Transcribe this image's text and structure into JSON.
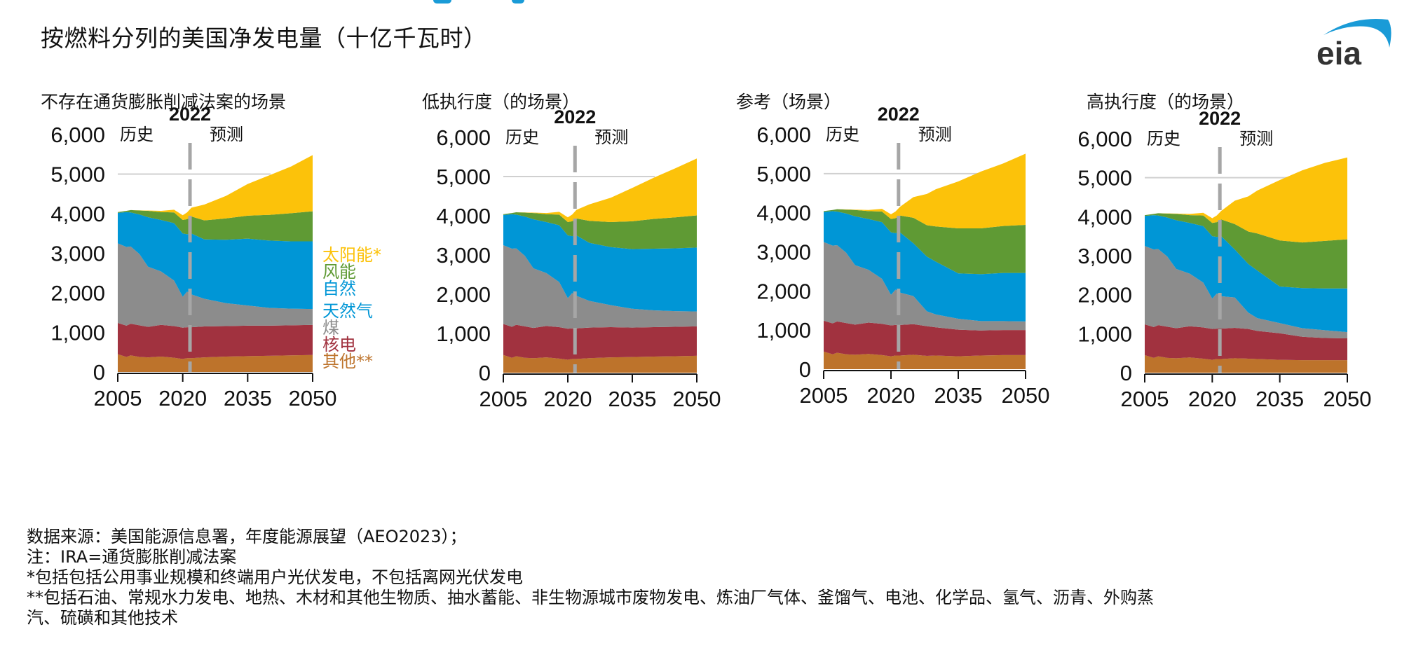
{
  "header": {
    "title": "按燃料分列的美国净发电量（十亿千瓦时）",
    "logo_text": "eia"
  },
  "colors": {
    "solar": "#fcc20a",
    "wind": "#5f9a34",
    "natural_gas": "#0096d6",
    "coal": "#8c8c8c",
    "nuclear": "#a1323f",
    "other": "#bd732b",
    "divider": "#a6a6a6",
    "gridline": "#d0d0d0",
    "logo_arc": "#1a9bd7",
    "logo_text": "#333333"
  },
  "legend": {
    "items": [
      {
        "key": "solar",
        "label": "太阳能*"
      },
      {
        "key": "wind",
        "label": "风能"
      },
      {
        "key": "natural_gas_1",
        "label": "自然",
        "color_key": "natural_gas"
      },
      {
        "key": "natural_gas_2",
        "label": "天然气",
        "color_key": "natural_gas"
      },
      {
        "key": "coal",
        "label": "煤"
      },
      {
        "key": "nuclear",
        "label": "核电"
      },
      {
        "key": "other",
        "label": "其他**"
      }
    ]
  },
  "footnotes": [
    "数据来源：美国能源信息署，年度能源展望（AEO2023）；",
    "注：IRA=通货膨胀削减法案",
    "*包括包括公用事业规模和终端用户光伏发电，不包括离网光伏发电",
    "**包括石油、常规水力发电、地热、木材和其他生物质、抽水蓄能、非生物源城市废物发电、炼油厂气体、釜馏气、电池、化学品、氢气、沥青、外购蒸",
    "汽、硫磺和其他技术"
  ],
  "chart_data": [
    {
      "type": "area",
      "stacked": true,
      "title": "不存在通货膨胀削减法案的场景",
      "divider_label": "2022",
      "divider_year": 2022,
      "history_label": "历史",
      "projection_label": "预测",
      "xlabel": "",
      "ylabel": "",
      "ylim": [
        0,
        6000
      ],
      "xlim": [
        2005,
        2050
      ],
      "yticks": [
        "0",
        "1,000",
        "2,000",
        "3,000",
        "4,000",
        "5,000",
        "6,000"
      ],
      "xticks": [
        "2005",
        "2020",
        "2035",
        "2050"
      ],
      "grid": "y=5000 only",
      "x": [
        2005,
        2007,
        2008,
        2010,
        2012,
        2015,
        2018,
        2020,
        2021,
        2022,
        2025,
        2030,
        2035,
        2040,
        2045,
        2050
      ],
      "series": [
        {
          "name": "其他",
          "key": "other",
          "values": [
            450,
            380,
            420,
            380,
            370,
            390,
            360,
            330,
            350,
            350,
            370,
            390,
            400,
            410,
            420,
            430
          ]
        },
        {
          "name": "核电",
          "key": "nuclear",
          "values": [
            790,
            790,
            800,
            800,
            770,
            800,
            800,
            790,
            780,
            780,
            780,
            770,
            770,
            760,
            760,
            760
          ]
        },
        {
          "name": "煤",
          "key": "coal",
          "values": [
            2010,
            1990,
            1950,
            1800,
            1520,
            1350,
            1150,
            780,
            900,
            830,
            700,
            580,
            510,
            450,
            420,
            400
          ]
        },
        {
          "name": "天然气",
          "key": "natural_gas",
          "values": [
            770,
            880,
            860,
            1000,
            1250,
            1300,
            1450,
            1600,
            1450,
            1540,
            1500,
            1600,
            1690,
            1700,
            1700,
            1710
          ]
        },
        {
          "name": "风能",
          "key": "wind",
          "values": [
            20,
            30,
            60,
            100,
            160,
            200,
            270,
            340,
            380,
            430,
            480,
            540,
            580,
            650,
            710,
            760
          ]
        },
        {
          "name": "太阳能",
          "key": "solar",
          "values": [
            0,
            0,
            0,
            5,
            10,
            30,
            70,
            120,
            170,
            220,
            400,
            570,
            800,
            1000,
            1180,
            1420
          ]
        }
      ]
    },
    {
      "type": "area",
      "stacked": true,
      "title": "低执行度（的场景）",
      "divider_label": "2022",
      "divider_year": 2022,
      "history_label": "历史",
      "projection_label": "预测",
      "xlabel": "",
      "ylabel": "",
      "ylim": [
        0,
        6000
      ],
      "xlim": [
        2005,
        2050
      ],
      "yticks": [
        "0",
        "1,000",
        "2,000",
        "3,000",
        "4,000",
        "5,000",
        "6,000"
      ],
      "xticks": [
        "2005",
        "2020",
        "2035",
        "2050"
      ],
      "grid": "y=5000 only",
      "x": [
        2005,
        2007,
        2008,
        2010,
        2012,
        2015,
        2018,
        2020,
        2021,
        2022,
        2025,
        2030,
        2035,
        2040,
        2045,
        2050
      ],
      "series": [
        {
          "name": "其他",
          "key": "other",
          "values": [
            450,
            380,
            420,
            380,
            370,
            390,
            360,
            330,
            350,
            350,
            370,
            390,
            400,
            410,
            420,
            430
          ]
        },
        {
          "name": "核电",
          "key": "nuclear",
          "values": [
            790,
            790,
            800,
            800,
            770,
            800,
            800,
            790,
            780,
            780,
            780,
            770,
            750,
            750,
            750,
            750
          ]
        },
        {
          "name": "煤",
          "key": "coal",
          "values": [
            2010,
            1990,
            1950,
            1800,
            1520,
            1350,
            1150,
            780,
            900,
            830,
            680,
            560,
            480,
            430,
            400,
            380
          ]
        },
        {
          "name": "天然气",
          "key": "natural_gas",
          "values": [
            770,
            880,
            860,
            1000,
            1250,
            1300,
            1450,
            1600,
            1450,
            1540,
            1480,
            1480,
            1520,
            1570,
            1600,
            1630
          ]
        },
        {
          "name": "风能",
          "key": "wind",
          "values": [
            20,
            30,
            60,
            100,
            160,
            200,
            270,
            340,
            380,
            430,
            560,
            640,
            710,
            760,
            790,
            820
          ]
        },
        {
          "name": "太阳能",
          "key": "solar",
          "values": [
            0,
            0,
            0,
            5,
            10,
            30,
            70,
            120,
            170,
            220,
            420,
            620,
            850,
            1050,
            1250,
            1450
          ]
        }
      ]
    },
    {
      "type": "area",
      "stacked": true,
      "title": "参考（场景）",
      "divider_label": "2022",
      "divider_year": 2022,
      "history_label": "历史",
      "projection_label": "预测",
      "xlabel": "",
      "ylabel": "",
      "ylim": [
        0,
        6000
      ],
      "xlim": [
        2005,
        2050
      ],
      "yticks": [
        "0",
        "1,000",
        "2,000",
        "3,000",
        "4,000",
        "5,000",
        "6,000"
      ],
      "xticks": [
        "2005",
        "2020",
        "2035",
        "2050"
      ],
      "grid": "y=5000 only",
      "x": [
        2005,
        2007,
        2008,
        2010,
        2012,
        2015,
        2018,
        2020,
        2021,
        2022,
        2025,
        2028,
        2030,
        2035,
        2040,
        2045,
        2050
      ],
      "series": [
        {
          "name": "其他",
          "key": "other",
          "values": [
            450,
            380,
            420,
            380,
            370,
            390,
            360,
            330,
            350,
            350,
            370,
            340,
            350,
            330,
            350,
            360,
            360
          ]
        },
        {
          "name": "核电",
          "key": "nuclear",
          "values": [
            790,
            790,
            800,
            800,
            770,
            800,
            800,
            790,
            780,
            780,
            780,
            760,
            720,
            680,
            640,
            640,
            640
          ]
        },
        {
          "name": "煤",
          "key": "coal",
          "values": [
            2010,
            1990,
            1950,
            1800,
            1520,
            1350,
            1150,
            780,
            900,
            830,
            720,
            380,
            330,
            280,
            240,
            230,
            220
          ]
        },
        {
          "name": "天然气",
          "key": "natural_gas",
          "values": [
            770,
            880,
            860,
            1000,
            1250,
            1300,
            1450,
            1600,
            1450,
            1540,
            1350,
            1400,
            1350,
            1160,
            1200,
            1230,
            1240
          ]
        },
        {
          "name": "风能",
          "key": "wind",
          "values": [
            20,
            30,
            60,
            100,
            160,
            200,
            270,
            340,
            380,
            430,
            650,
            800,
            900,
            1150,
            1170,
            1200,
            1230
          ]
        },
        {
          "name": "太阳能",
          "key": "solar",
          "values": [
            0,
            0,
            0,
            5,
            10,
            30,
            70,
            120,
            170,
            220,
            530,
            800,
            950,
            1200,
            1450,
            1600,
            1820
          ]
        }
      ]
    },
    {
      "type": "area",
      "stacked": true,
      "title": "高执行度（的场景）",
      "divider_label": "2022",
      "divider_year": 2022,
      "history_label": "历史",
      "projection_label": "预测",
      "xlabel": "",
      "ylabel": "",
      "ylim": [
        0,
        6000
      ],
      "xlim": [
        2005,
        2050
      ],
      "yticks": [
        "0",
        "1,000",
        "2,000",
        "3,000",
        "4,000",
        "5,000",
        "6,000"
      ],
      "xticks": [
        "2005",
        "2020",
        "2035",
        "2050"
      ],
      "grid": "y=5000 only",
      "x": [
        2005,
        2007,
        2008,
        2010,
        2012,
        2015,
        2018,
        2020,
        2021,
        2022,
        2025,
        2028,
        2030,
        2035,
        2040,
        2045,
        2050
      ],
      "series": [
        {
          "name": "其他",
          "key": "other",
          "values": [
            450,
            380,
            420,
            380,
            370,
            390,
            360,
            330,
            350,
            350,
            370,
            360,
            350,
            330,
            320,
            320,
            320
          ]
        },
        {
          "name": "核电",
          "key": "nuclear",
          "values": [
            790,
            790,
            800,
            800,
            770,
            800,
            800,
            790,
            780,
            780,
            780,
            760,
            720,
            680,
            600,
            570,
            560
          ]
        },
        {
          "name": "煤",
          "key": "coal",
          "values": [
            2010,
            1990,
            1950,
            1800,
            1520,
            1350,
            1150,
            780,
            900,
            830,
            780,
            420,
            330,
            260,
            220,
            200,
            160
          ]
        },
        {
          "name": "天然气",
          "key": "natural_gas",
          "values": [
            770,
            880,
            860,
            1000,
            1250,
            1300,
            1450,
            1600,
            1450,
            1540,
            1230,
            1250,
            1220,
            940,
            1030,
            1070,
            1120
          ]
        },
        {
          "name": "风能",
          "key": "wind",
          "values": [
            20,
            30,
            60,
            100,
            160,
            200,
            270,
            340,
            380,
            430,
            650,
            830,
            950,
            1180,
            1170,
            1220,
            1260
          ]
        },
        {
          "name": "太阳能",
          "key": "solar",
          "values": [
            0,
            0,
            0,
            5,
            10,
            30,
            70,
            120,
            170,
            220,
            600,
            900,
            1100,
            1550,
            1850,
            2000,
            2100
          ]
        }
      ]
    }
  ]
}
